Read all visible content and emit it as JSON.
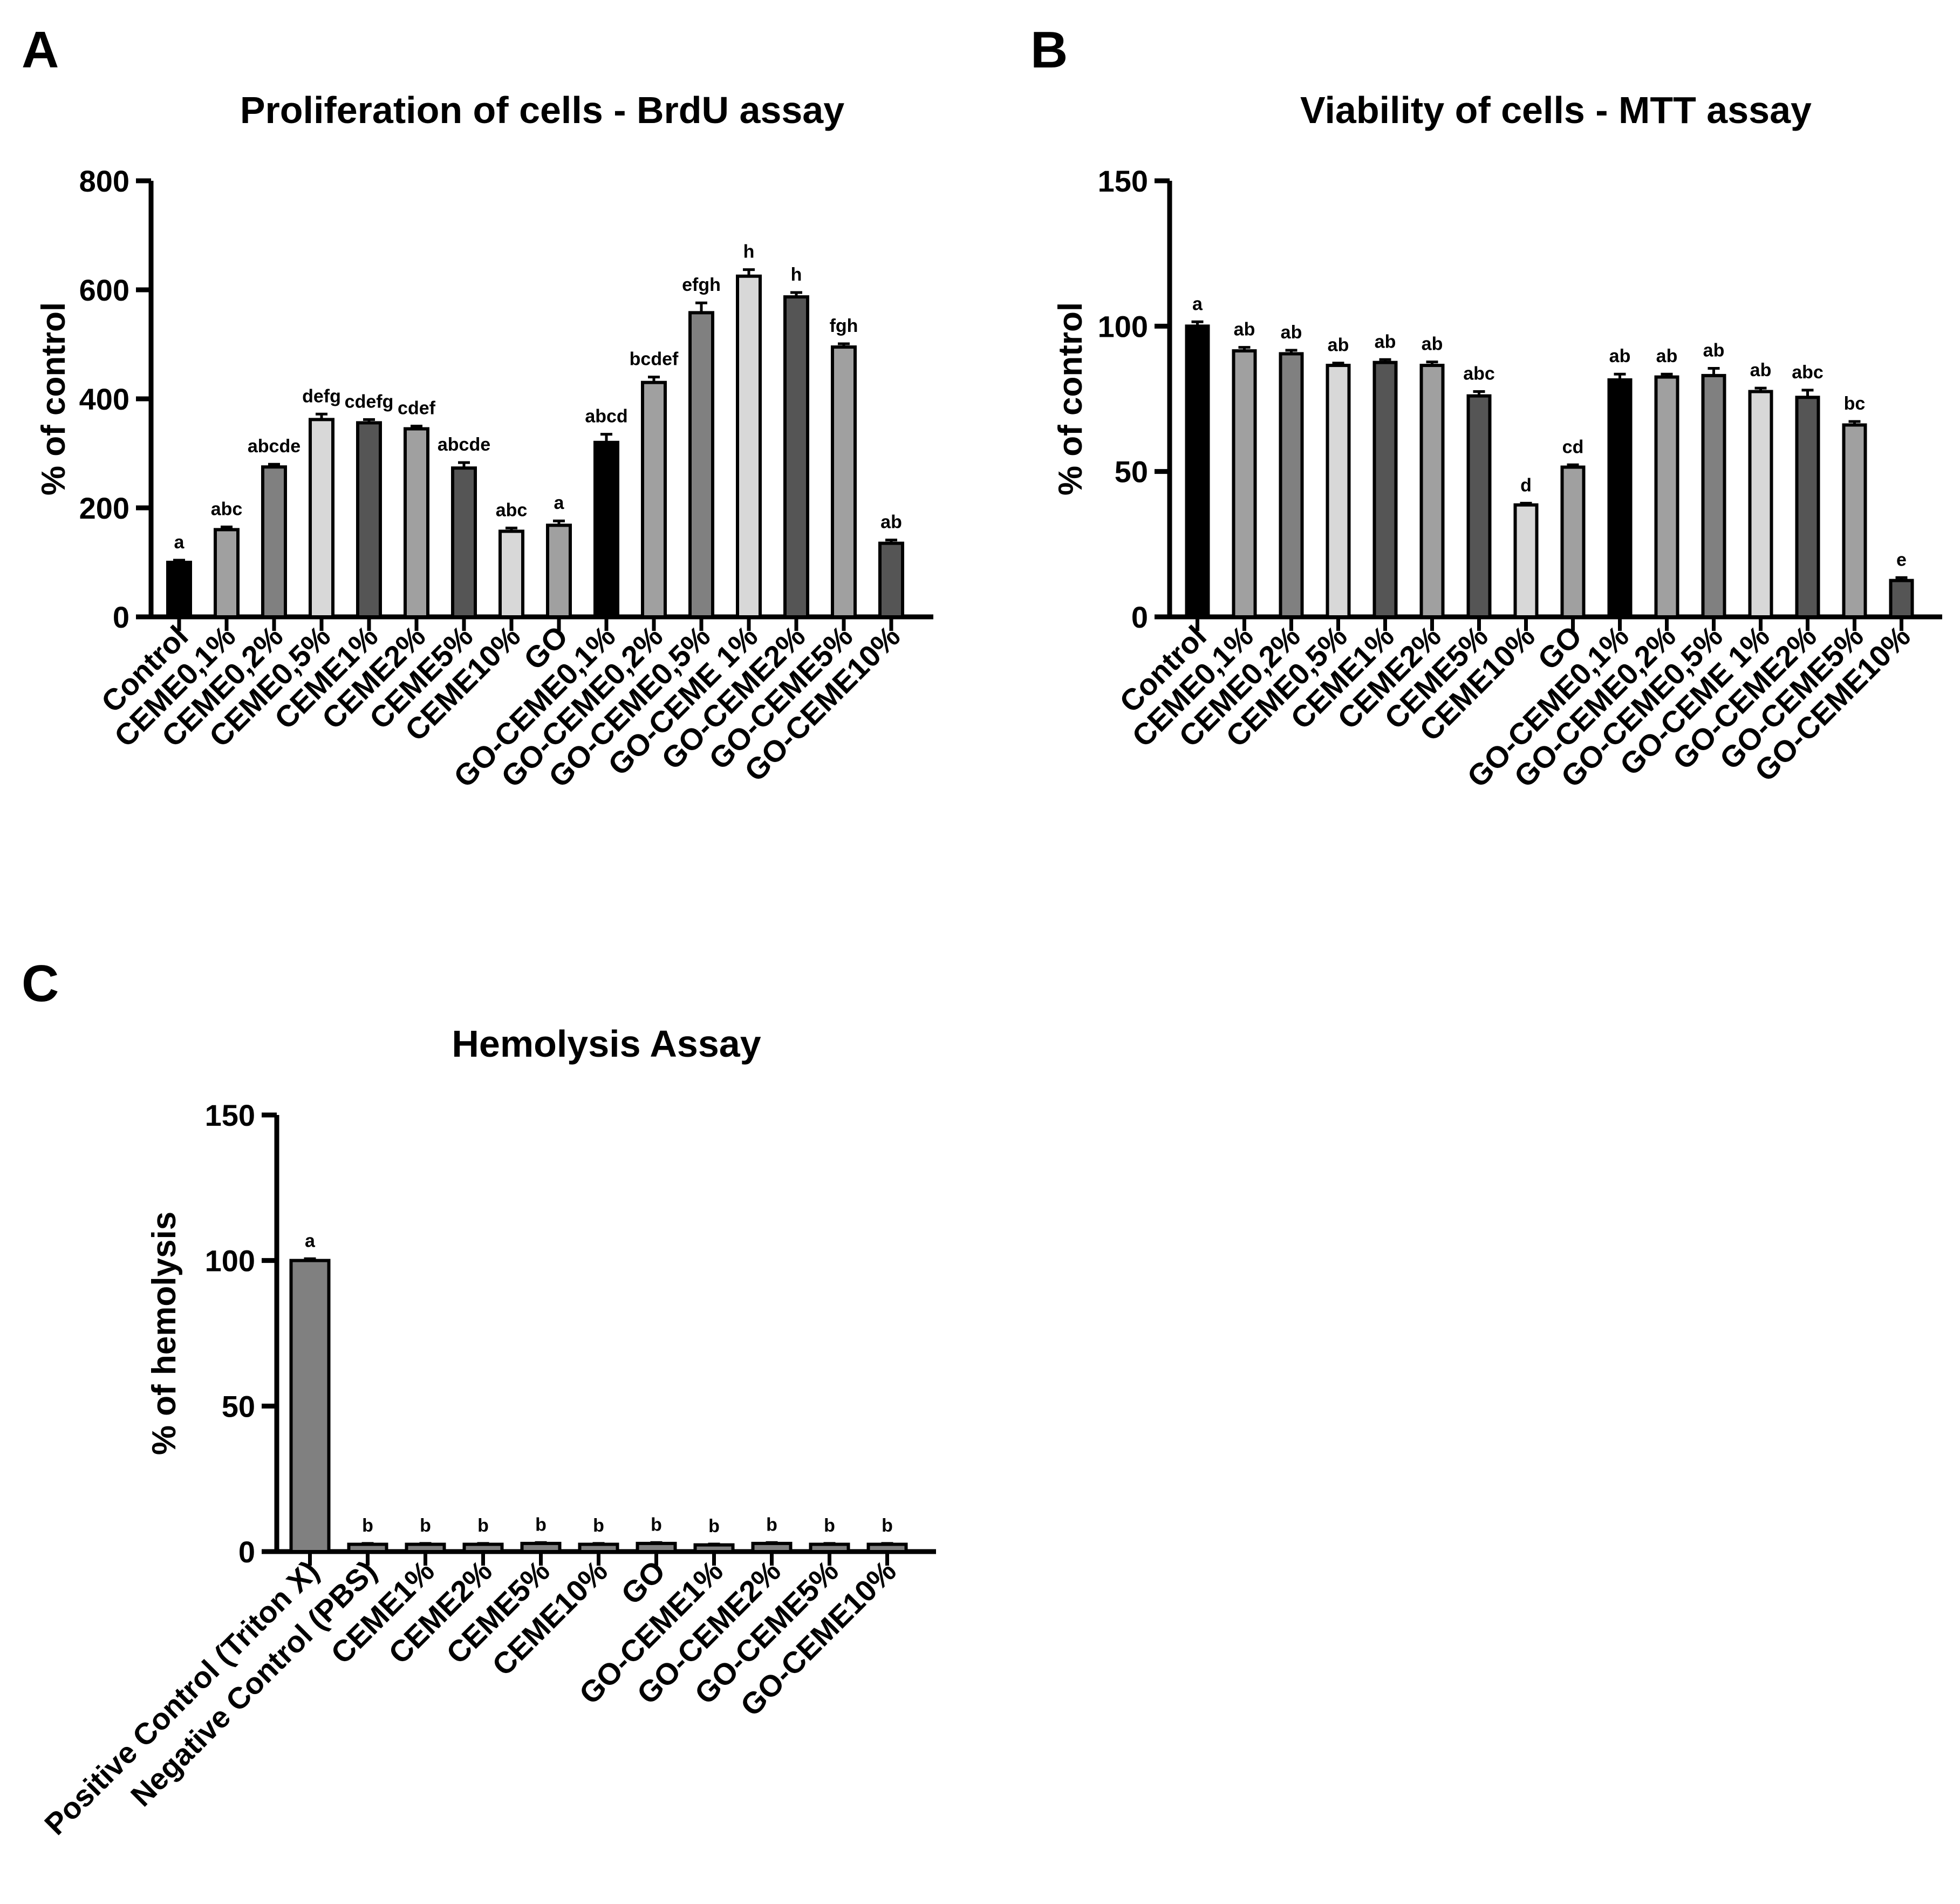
{
  "panels": {
    "a": "A",
    "b": "B",
    "c": "C"
  },
  "colors": {
    "black": "#000000",
    "dark": "#555555",
    "mid": "#808080",
    "light": "#a0a0a0",
    "pale": "#d8d8d8"
  },
  "chart_data": [
    {
      "type": "bar",
      "title": "Proliferation of cells - BrdU assay",
      "xlabel": "",
      "ylabel": "% of control",
      "ylim": [
        0,
        800
      ],
      "yticks": [
        0,
        200,
        400,
        600,
        800
      ],
      "categories": [
        "Control",
        "CEME0,1%",
        "CEME0,2%",
        "CEME0,5%",
        "CEME1%",
        "CEME2%",
        "CEME5%",
        "CEME10%",
        "GO",
        "GO-CEME0,1%",
        "GO-CEME0,2%",
        "GO-CEME0,5%",
        "GO-CEME 1%",
        "GO-CEME2%",
        "GO-CEME5%",
        "GO-CEME10%"
      ],
      "values": [
        100,
        160,
        275,
        362,
        356,
        345,
        273,
        157,
        168,
        320,
        430,
        558,
        625,
        587,
        495,
        135
      ],
      "errors": [
        4,
        5,
        5,
        10,
        6,
        5,
        10,
        6,
        8,
        15,
        10,
        18,
        12,
        8,
        6,
        6
      ],
      "fills": [
        "black",
        "light",
        "mid",
        "pale",
        "dark",
        "light",
        "dark",
        "pale",
        "light",
        "black",
        "light",
        "mid",
        "pale",
        "dark",
        "light",
        "dark"
      ],
      "significance": [
        "a",
        "abc",
        "abcde",
        "defg",
        "cdefg",
        "cdef",
        "abcde",
        "abc",
        "a",
        "abcd",
        "bcdef",
        "efgh",
        "h",
        "h",
        "fgh",
        "ab"
      ]
    },
    {
      "type": "bar",
      "title": "Viability of cells -  MTT assay",
      "xlabel": "",
      "ylabel": "% of control",
      "ylim": [
        0,
        150
      ],
      "yticks": [
        0,
        50,
        100,
        150
      ],
      "categories": [
        "Control",
        "CEME0,1%",
        "CEME0,2%",
        "CEME0,5%",
        "CEME1%",
        "CEME2%",
        "CEME5%",
        "CEME10%",
        "GO",
        "GO-CEME0,1%",
        "GO-CEME0,2%",
        "GO-CEME0,5%",
        "GO-CEME 1%",
        "GO-CEME2%",
        "GO-CEME5%",
        "GO-CEME10%"
      ],
      "values": [
        100,
        91.5,
        90.5,
        86.5,
        87.5,
        86.5,
        76,
        38.5,
        51.5,
        81.5,
        82.5,
        83,
        77.5,
        75.5,
        66,
        12.5
      ],
      "errors": [
        1.5,
        1.2,
        1.2,
        0.8,
        1,
        1.2,
        1.5,
        0.6,
        0.8,
        2,
        1,
        2.5,
        1.2,
        2.5,
        1.2,
        1
      ],
      "fills": [
        "black",
        "light",
        "mid",
        "pale",
        "dark",
        "light",
        "dark",
        "pale",
        "light",
        "black",
        "light",
        "mid",
        "pale",
        "dark",
        "light",
        "dark"
      ],
      "significance": [
        "a",
        "ab",
        "ab",
        "ab",
        "ab",
        "ab",
        "abc",
        "d",
        "cd",
        "ab",
        "ab",
        "ab",
        "ab",
        "abc",
        "bc",
        "e"
      ]
    },
    {
      "type": "bar",
      "title": "Hemolysis  Assay",
      "xlabel": "",
      "ylabel": "% of hemolysis",
      "ylim": [
        0,
        150
      ],
      "yticks": [
        0,
        50,
        100,
        150
      ],
      "categories": [
        "Positive Control (Triton X)",
        "Negative Control (PBS)",
        "CEME1%",
        "CEME2%",
        "CEME5%",
        "CEME10%",
        "GO",
        "GO-CEME1%",
        "GO-CEME2%",
        "GO-CEME5%",
        "GO-CEME10%"
      ],
      "values": [
        100,
        2.5,
        2.5,
        2.5,
        2.8,
        2.5,
        2.8,
        2.3,
        2.8,
        2.5,
        2.5
      ],
      "errors": [
        0.6,
        0.3,
        0.3,
        0.3,
        0.3,
        0.3,
        0.3,
        0.3,
        0.3,
        0.3,
        0.3
      ],
      "fills": [
        "mid",
        "mid",
        "mid",
        "mid",
        "mid",
        "mid",
        "mid",
        "mid",
        "mid",
        "mid",
        "mid"
      ],
      "significance": [
        "a",
        "b",
        "b",
        "b",
        "b",
        "b",
        "b",
        "b",
        "b",
        "b",
        "b"
      ]
    }
  ]
}
